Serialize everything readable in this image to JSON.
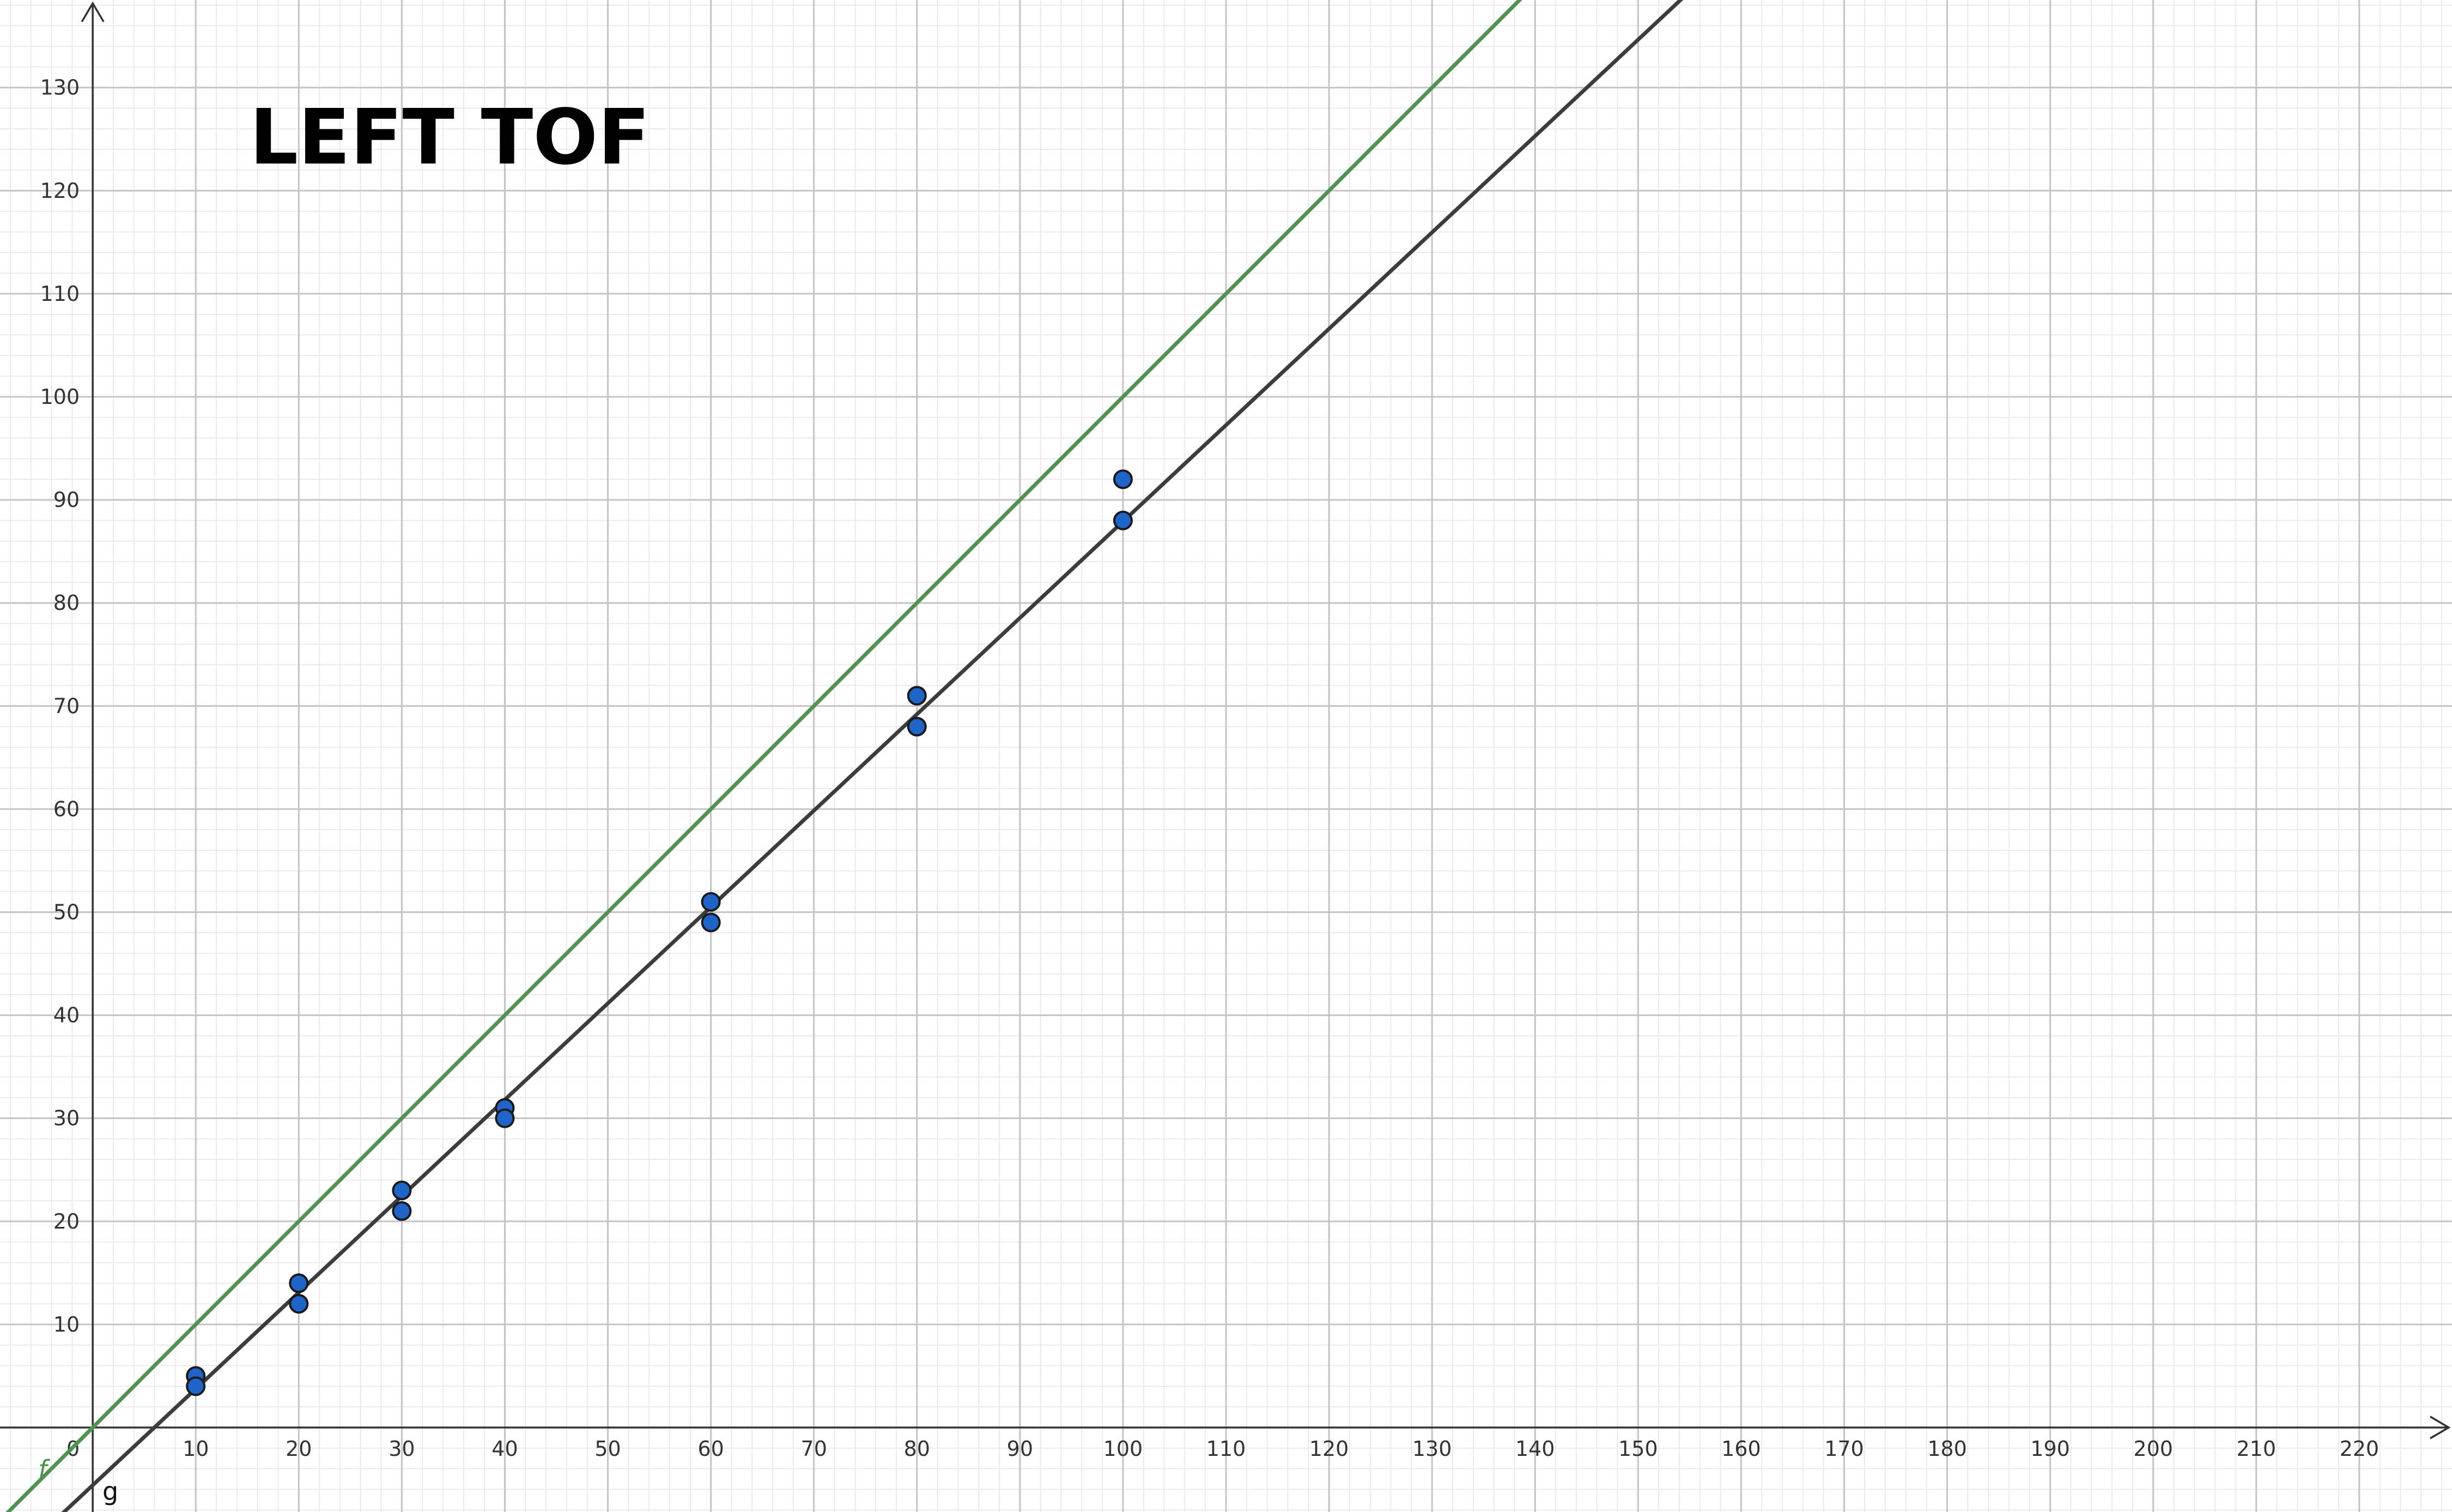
{
  "chart_data": {
    "type": "scatter",
    "title": "LEFT TOF",
    "xlabel": "",
    "ylabel": "",
    "xlim": [
      -9,
      229
    ],
    "ylim": [
      -8.2,
      138.5
    ],
    "grid": true,
    "origin_label": "0",
    "x_ticks": [
      10,
      20,
      30,
      40,
      50,
      60,
      70,
      80,
      90,
      100,
      110,
      120,
      130,
      140,
      150,
      160,
      170,
      180,
      190,
      200,
      210,
      220
    ],
    "y_ticks": [
      10,
      20,
      30,
      40,
      50,
      60,
      70,
      80,
      90,
      100,
      110,
      120,
      130
    ],
    "points": [
      {
        "x": 10,
        "y": 5
      },
      {
        "x": 10,
        "y": 4
      },
      {
        "x": 20,
        "y": 14
      },
      {
        "x": 20,
        "y": 12
      },
      {
        "x": 30,
        "y": 23
      },
      {
        "x": 30,
        "y": 21
      },
      {
        "x": 40,
        "y": 31
      },
      {
        "x": 40,
        "y": 30
      },
      {
        "x": 60,
        "y": 51
      },
      {
        "x": 60,
        "y": 49
      },
      {
        "x": 80,
        "y": 71
      },
      {
        "x": 80,
        "y": 68
      },
      {
        "x": 100,
        "y": 92
      },
      {
        "x": 100,
        "y": 88
      }
    ],
    "lines": [
      {
        "name": "f",
        "slope": 1.0,
        "intercept": 0,
        "color": "#4e9350"
      },
      {
        "name": "g",
        "slope": 0.935,
        "intercept": -5.6,
        "color": "#3c3c3c"
      }
    ],
    "point_color": "#1f64c8",
    "point_stroke": "#1a1a1a"
  }
}
